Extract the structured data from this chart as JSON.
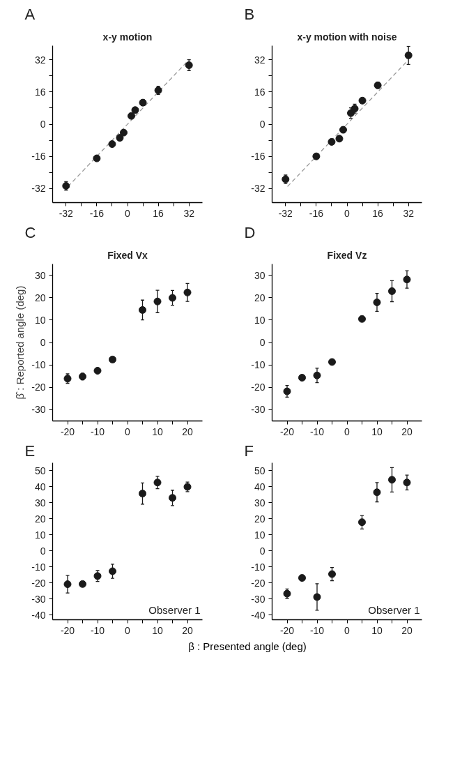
{
  "chart_data": [
    {
      "type": "scatter",
      "title": "x-y motion",
      "annotations": [
        "A"
      ],
      "xlim": [
        -39,
        39
      ],
      "ylim": [
        -39,
        39
      ],
      "xticks": [
        -32,
        {
          "value": -24,
          "label": null
        },
        -16,
        {
          "value": -8,
          "label": null
        },
        0,
        {
          "value": 8,
          "label": null
        },
        16,
        {
          "value": 24,
          "label": null
        },
        32
      ],
      "yticks": [
        -32,
        {
          "value": -24,
          "label": null
        },
        -16,
        {
          "value": -8,
          "label": null
        },
        0,
        {
          "value": 8,
          "label": null
        },
        16,
        {
          "value": 24,
          "label": null
        },
        32
      ],
      "series": [
        {
          "type": "line",
          "color": "#999999",
          "line_style": "dashed",
          "x": [
            -31,
            31
          ],
          "values": [
            -31,
            31
          ]
        },
        {
          "type": "scatter",
          "marker": "circle",
          "color": "#1a1a1a",
          "x": [
            -32,
            -16,
            -8,
            -4,
            -2,
            2,
            4,
            8,
            16,
            32
          ],
          "values": [
            -30.7,
            -17,
            -9.9,
            -6.8,
            -4.2,
            4.1,
            7,
            10.7,
            16.8,
            29.3
          ],
          "errors": [
            2.1,
            null,
            null,
            null,
            null,
            null,
            1,
            1.5,
            2,
            2.7
          ]
        }
      ]
    },
    {
      "type": "scatter",
      "title": "x-y motion with noise",
      "annotations": [
        "B"
      ],
      "xlim": [
        -39,
        39
      ],
      "ylim": [
        -39,
        39
      ],
      "xticks": [
        -32,
        {
          "value": -24,
          "label": null
        },
        -16,
        {
          "value": -8,
          "label": null
        },
        0,
        {
          "value": 8,
          "label": null
        },
        16,
        {
          "value": 24,
          "label": null
        },
        32
      ],
      "yticks": [
        -32,
        {
          "value": -24,
          "label": null
        },
        -16,
        {
          "value": -8,
          "label": null
        },
        0,
        {
          "value": 8,
          "label": null
        },
        16,
        {
          "value": 24,
          "label": null
        },
        32
      ],
      "series": [
        {
          "type": "line",
          "color": "#999999",
          "line_style": "dashed",
          "x": [
            -31,
            31
          ],
          "values": [
            -31,
            31
          ]
        },
        {
          "type": "scatter",
          "marker": "circle",
          "color": "#1a1a1a",
          "x": [
            -32,
            -16,
            -8,
            -4,
            -2,
            2,
            4,
            8,
            16,
            32
          ],
          "values": [
            -27.4,
            -16,
            -8.8,
            -7.2,
            -2.8,
            5.5,
            7.7,
            11.7,
            19.3,
            34.2
          ],
          "errors": [
            2.1,
            null,
            null,
            null,
            1.5,
            2.6,
            2.2,
            1,
            1.5,
            4.5
          ]
        }
      ]
    },
    {
      "type": "scatter",
      "title": "Fixed Vx",
      "ylabel": "β̂ : Reported angle (deg)",
      "annotations": [
        "C"
      ],
      "xlim": [
        -25,
        25
      ],
      "ylim": [
        -35,
        35
      ],
      "xticks": [
        -20,
        {
          "value": -15,
          "label": null
        },
        -10,
        {
          "value": -5,
          "label": null
        },
        0,
        {
          "value": 5,
          "label": null
        },
        10,
        {
          "value": 15,
          "label": null
        },
        20
      ],
      "yticks": [
        -30,
        -20,
        -10,
        0,
        10,
        20,
        30
      ],
      "series": [
        {
          "type": "scatter",
          "marker": "circle",
          "color": "#1a1a1a",
          "x": [
            -20,
            -15,
            -10,
            -5,
            5,
            10,
            15,
            20
          ],
          "values": [
            -16.1,
            -15.2,
            -12.6,
            -7.6,
            14.5,
            18.3,
            19.9,
            22.3
          ],
          "errors": [
            2.1,
            1.5,
            null,
            null,
            4.4,
            5,
            3.3,
            4
          ]
        }
      ]
    },
    {
      "type": "scatter",
      "title": "Fixed Vz",
      "annotations": [
        "D"
      ],
      "xlim": [
        -25,
        25
      ],
      "ylim": [
        -35,
        35
      ],
      "xticks": [
        -20,
        {
          "value": -15,
          "label": null
        },
        -10,
        {
          "value": -5,
          "label": null
        },
        0,
        {
          "value": 5,
          "label": null
        },
        10,
        {
          "value": 15,
          "label": null
        },
        20
      ],
      "yticks": [
        -30,
        -20,
        -10,
        0,
        10,
        20,
        30
      ],
      "series": [
        {
          "type": "scatter",
          "marker": "circle",
          "color": "#1a1a1a",
          "x": [
            -20,
            -15,
            -10,
            -5,
            5,
            10,
            15,
            20
          ],
          "values": [
            -21.8,
            -15.7,
            -14.7,
            -8.7,
            10.5,
            17.9,
            22.9,
            28.1
          ],
          "errors": [
            2.6,
            null,
            3.2,
            null,
            null,
            4,
            4.7,
            3.9
          ]
        }
      ]
    },
    {
      "type": "scatter",
      "xlabel": "β : Presented angle (deg)",
      "annotations": [
        "E",
        "Observer 1"
      ],
      "xlim": [
        -25,
        25
      ],
      "ylim": [
        -43,
        55
      ],
      "xticks": [
        -20,
        {
          "value": -15,
          "label": null
        },
        -10,
        {
          "value": -5,
          "label": null
        },
        0,
        {
          "value": 5,
          "label": null
        },
        10,
        {
          "value": 15,
          "label": null
        },
        20
      ],
      "yticks": [
        -40,
        -30,
        -20,
        -10,
        0,
        10,
        20,
        30,
        40,
        50
      ],
      "series": [
        {
          "type": "scatter",
          "marker": "circle",
          "color": "#1a1a1a",
          "x": [
            -20,
            -15,
            -10,
            -5,
            5,
            10,
            15,
            20
          ],
          "values": [
            -20.8,
            -20.7,
            -15.7,
            -12.7,
            35.8,
            42.7,
            33.1,
            40
          ],
          "errors": [
            5.5,
            null,
            3.4,
            4.4,
            6.6,
            3.9,
            4.8,
            3
          ]
        }
      ]
    },
    {
      "type": "scatter",
      "annotations": [
        "F",
        "Observer 1"
      ],
      "xlim": [
        -25,
        25
      ],
      "ylim": [
        -43,
        55
      ],
      "xticks": [
        -20,
        {
          "value": -15,
          "label": null
        },
        -10,
        {
          "value": -5,
          "label": null
        },
        0,
        {
          "value": 5,
          "label": null
        },
        10,
        {
          "value": 15,
          "label": null
        },
        20
      ],
      "yticks": [
        -40,
        -30,
        -20,
        -10,
        0,
        10,
        20,
        30,
        40,
        50
      ],
      "series": [
        {
          "type": "scatter",
          "marker": "circle",
          "color": "#1a1a1a",
          "x": [
            -20,
            -15,
            -10,
            -5,
            5,
            10,
            15,
            20
          ],
          "values": [
            -26.7,
            -16.9,
            -28.8,
            -14.5,
            17.9,
            36.6,
            44.4,
            42.7
          ],
          "errors": [
            2.9,
            null,
            8.3,
            4.1,
            4.2,
            6,
            7.6,
            4.6
          ]
        }
      ]
    }
  ]
}
